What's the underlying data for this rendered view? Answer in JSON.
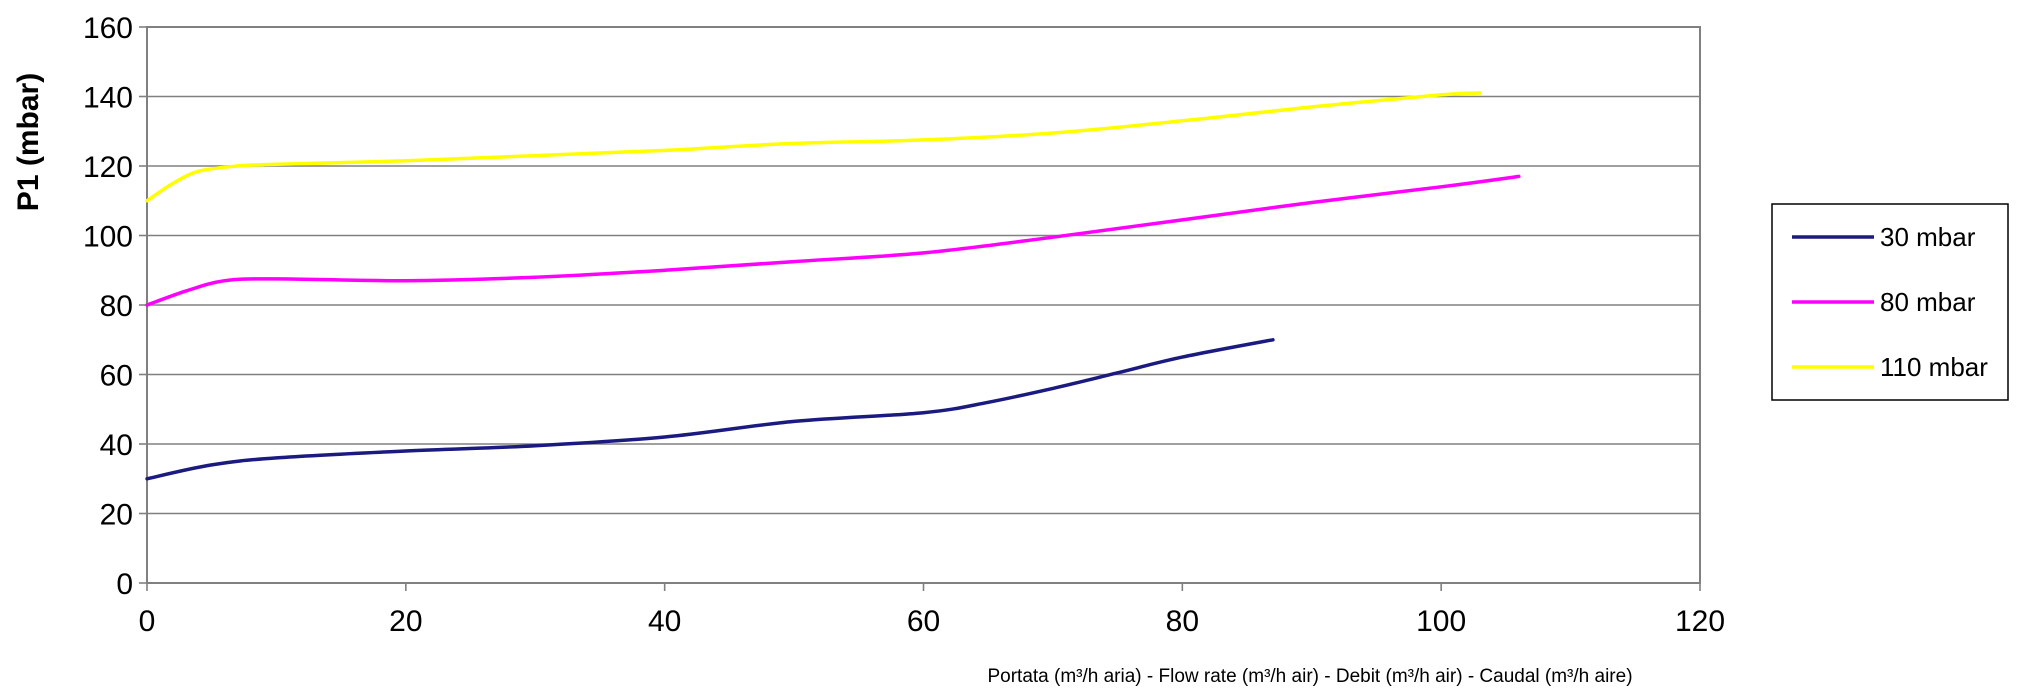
{
  "chart_data": {
    "type": "line",
    "title": "",
    "xlabel": "Portata (m³/h aria) - Flow rate (m³/h air) - Debit (m³/h air) - Caudal (m³/h aire)",
    "ylabel": "P1 (mbar)",
    "xlim": [
      0,
      120
    ],
    "ylim": [
      0,
      160
    ],
    "x_ticks": [
      0,
      20,
      40,
      60,
      80,
      100,
      120
    ],
    "y_ticks": [
      0,
      20,
      40,
      60,
      80,
      100,
      120,
      140,
      160
    ],
    "grid": "horizontal",
    "legend_position": "right",
    "series": [
      {
        "name": "30 mbar",
        "color": "#1a1a80",
        "x": [
          0,
          5,
          10,
          20,
          30,
          40,
          50,
          60,
          65,
          70,
          75,
          80,
          87
        ],
        "y": [
          30,
          34,
          36,
          38,
          39.5,
          42,
          46.5,
          49,
          52,
          56,
          60.5,
          65,
          70
        ]
      },
      {
        "name": "80 mbar",
        "color": "#ff00ff",
        "x": [
          0,
          3,
          6,
          10,
          20,
          30,
          40,
          50,
          60,
          70,
          80,
          90,
          100,
          106
        ],
        "y": [
          80,
          84,
          87,
          87.5,
          87,
          88,
          90,
          92.5,
          95,
          99.5,
          104.5,
          109.5,
          114,
          117
        ]
      },
      {
        "name": "110 mbar",
        "color": "#ffff00",
        "x": [
          0,
          2,
          4,
          7,
          10,
          20,
          30,
          40,
          50,
          60,
          70,
          80,
          90,
          100,
          103
        ],
        "y": [
          110,
          115,
          118.5,
          120,
          120.5,
          121.5,
          123,
          124.5,
          126.5,
          127.5,
          129.5,
          133,
          137,
          140.5,
          141
        ]
      }
    ]
  }
}
